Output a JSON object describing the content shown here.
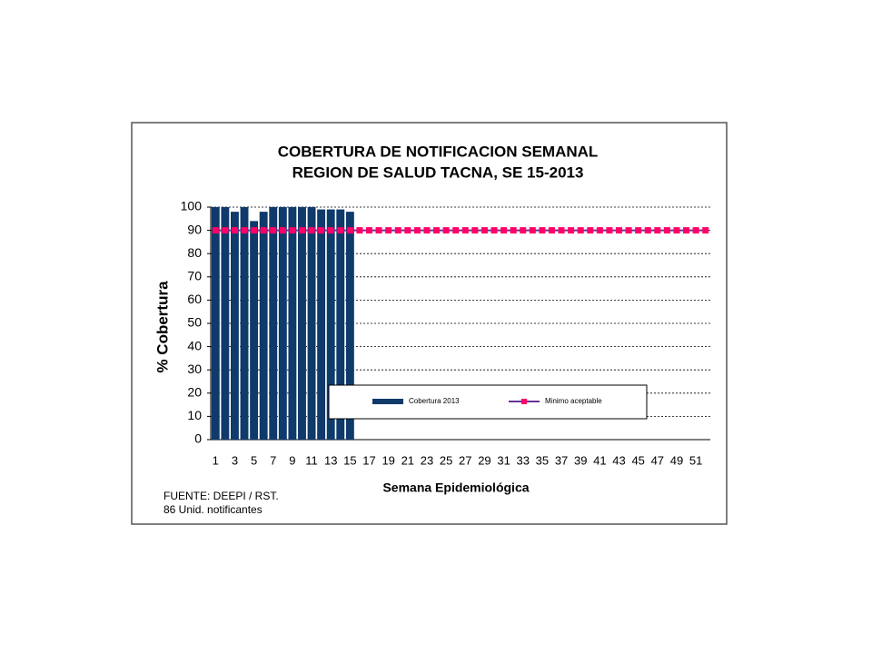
{
  "chart_data": {
    "type": "bar",
    "title": [
      "COBERTURA DE NOTIFICACION SEMANAL",
      "REGION DE SALUD TACNA, SE 15-2013"
    ],
    "ylabel": "% Cobertura",
    "xlabel": "Semana Epidemiológica",
    "notes": [
      "FUENTE: DEEPI / RST.",
      "86 Unid. notificantes"
    ],
    "categories": [
      1,
      null,
      3,
      null,
      5,
      null,
      7,
      null,
      9,
      null,
      11,
      null,
      13,
      null,
      15,
      null,
      17,
      null,
      19,
      null,
      21,
      null,
      23,
      null,
      25,
      null,
      27,
      null,
      29,
      null,
      31,
      null,
      33,
      null,
      35,
      null,
      37,
      null,
      39,
      null,
      41,
      null,
      43,
      null,
      45,
      null,
      47,
      null,
      49,
      null,
      51,
      null
    ],
    "series": [
      {
        "name": "Cobertura 2013",
        "type": "bar",
        "color": "#0f3a6b",
        "values": [
          100,
          100,
          98,
          100,
          94,
          98,
          100,
          100,
          100,
          100,
          100,
          99,
          99,
          99,
          98,
          null,
          null,
          null,
          null,
          null,
          null,
          null,
          null,
          null,
          null,
          null,
          null,
          null,
          null,
          null,
          null,
          null,
          null,
          null,
          null,
          null,
          null,
          null,
          null,
          null,
          null,
          null,
          null,
          null,
          null,
          null,
          null,
          null,
          null,
          null,
          null,
          null
        ]
      },
      {
        "name": "Minimo aceptable",
        "type": "line",
        "color": "#663399",
        "marker_color": "#ff0066",
        "values": [
          90,
          90,
          90,
          90,
          90,
          90,
          90,
          90,
          90,
          90,
          90,
          90,
          90,
          90,
          90,
          90,
          90,
          90,
          90,
          90,
          90,
          90,
          90,
          90,
          90,
          90,
          90,
          90,
          90,
          90,
          90,
          90,
          90,
          90,
          90,
          90,
          90,
          90,
          90,
          90,
          90,
          90,
          90,
          90,
          90,
          90,
          90,
          90,
          90,
          90,
          90,
          90
        ]
      }
    ],
    "ylim": [
      0,
      100
    ],
    "yticks": [
      0,
      10,
      20,
      30,
      40,
      50,
      60,
      70,
      80,
      90,
      100
    ],
    "grid": true
  }
}
